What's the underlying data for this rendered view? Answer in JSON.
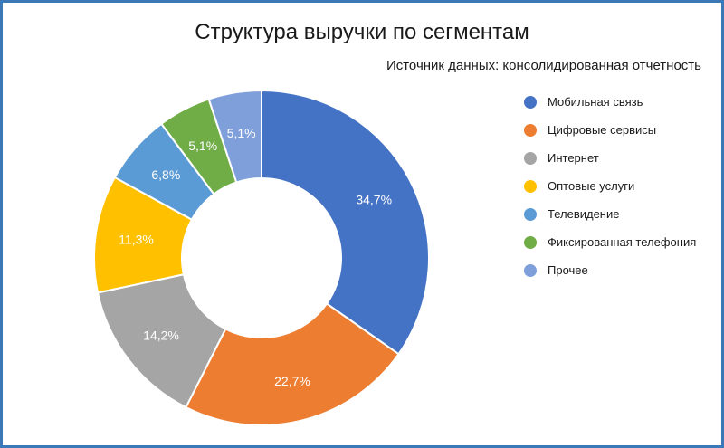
{
  "title": "Структура выручки по сегментам",
  "subtitle": "Источник данных: консолидированная отчетность",
  "chart_data": {
    "type": "pie",
    "donut": true,
    "legend_position": "right",
    "categories": [
      "Мобильная связь",
      "Цифровые сервисы",
      "Интернет",
      "Оптовые услуги",
      "Телевидение",
      "Фиксированная телефония",
      "Прочее"
    ],
    "values": [
      34.7,
      22.7,
      14.2,
      11.3,
      6.8,
      5.1,
      5.1
    ],
    "data_labels": [
      "34,7%",
      "22,7%",
      "14,2%",
      "11,3%",
      "6,8%",
      "5,1%",
      "5,1%"
    ],
    "colors": [
      "#4472c4",
      "#ed7d31",
      "#a5a5a5",
      "#ffc000",
      "#5b9bd5",
      "#70ad47",
      "#7f9fdb"
    ]
  }
}
